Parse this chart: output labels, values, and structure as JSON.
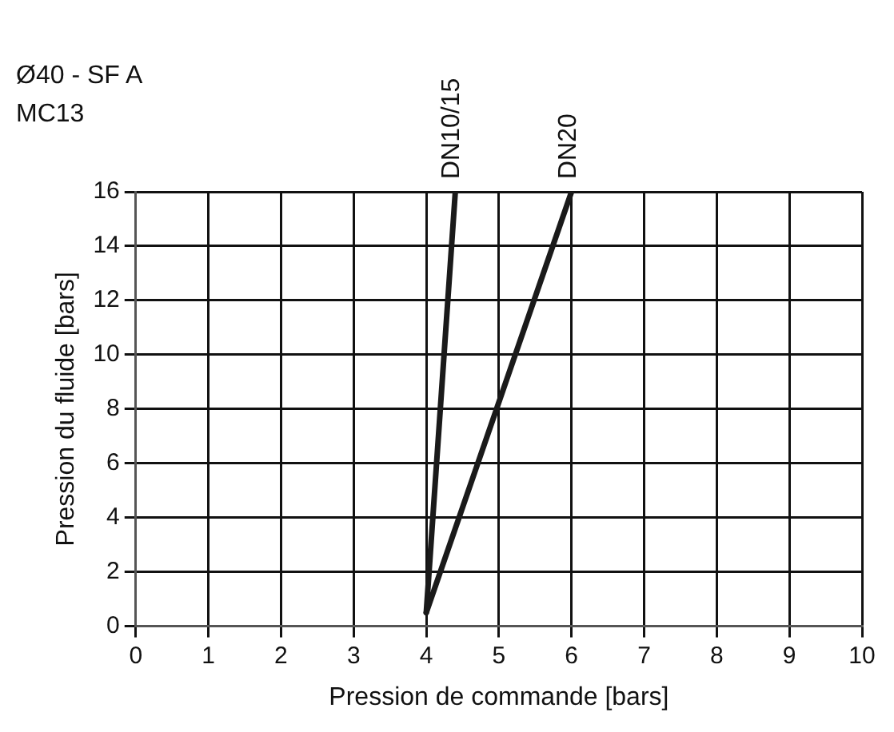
{
  "chart_data": {
    "type": "line",
    "title": "Ø40 - SF A",
    "subtitle": "MC13",
    "xlabel": "Pression de commande [bars]",
    "ylabel": "Pression du fluide [bars]",
    "series": [
      {
        "name": "DN10/15",
        "color": "#1a1a1a",
        "x": [
          4,
          4.4
        ],
        "values": [
          0.5,
          16
        ]
      },
      {
        "name": "DN20",
        "color": "#1a1a1a",
        "x": [
          4,
          6
        ],
        "values": [
          0.5,
          16
        ]
      }
    ],
    "xlim": [
      0,
      10
    ],
    "xticks": [
      0,
      1,
      2,
      3,
      4,
      5,
      6,
      7,
      8,
      9,
      10
    ],
    "ylim": [
      0,
      16
    ],
    "yticks": [
      0,
      2,
      4,
      6,
      8,
      10,
      12,
      14,
      16
    ],
    "grid": true,
    "marker": "none",
    "line_style": "solid",
    "legend": false
  }
}
